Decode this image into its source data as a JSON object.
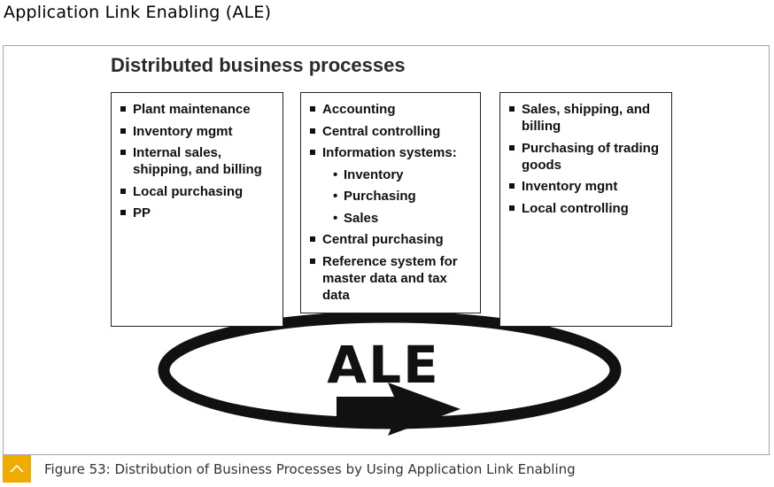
{
  "page": {
    "heading": "Application Link Enabling (ALE)"
  },
  "diagram": {
    "title": "Distributed business processes",
    "center_label": "ALE",
    "boxes": [
      {
        "items": [
          "Plant maintenance",
          "Inventory mgmt",
          "Internal sales, shipping, and billing",
          "Local purchasing",
          "PP"
        ]
      },
      {
        "items": [
          "Accounting",
          "Central controlling",
          "Information systems:",
          "Central purchasing",
          "Reference system for master data and tax data"
        ],
        "subitems": [
          "Inventory",
          "Purchasing",
          "Sales"
        ]
      },
      {
        "items": [
          "Sales, shipping, and billing",
          "Purchasing of trading goods",
          "Inventory mgnt",
          "Local controlling"
        ]
      }
    ]
  },
  "caption": {
    "text": "Figure 53: Distribution of Business Processes by Using Application Link Enabling",
    "icon": "chevron-up-icon",
    "accent_color": "#f0ab00"
  }
}
